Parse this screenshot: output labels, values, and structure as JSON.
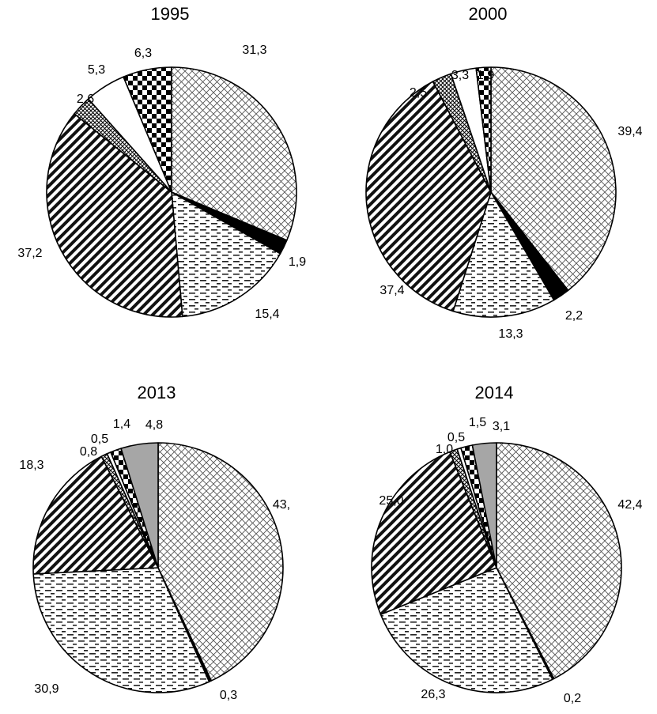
{
  "chart_data": [
    {
      "type": "pie",
      "title": "1995",
      "slices": [
        {
          "value": 31.3,
          "label": "31,3",
          "pattern": "crosshatch"
        },
        {
          "value": 1.9,
          "label": "1,9",
          "pattern": "solid-black"
        },
        {
          "value": 15.4,
          "label": "15,4",
          "pattern": "dashes"
        },
        {
          "value": 37.2,
          "label": "37,2",
          "pattern": "diagonal-stripes"
        },
        {
          "value": 2.6,
          "label": "2,6",
          "pattern": "small-grid"
        },
        {
          "value": 5.3,
          "label": "5,3",
          "pattern": "white"
        },
        {
          "value": 6.3,
          "label": "6,3",
          "pattern": "checkerboard"
        }
      ]
    },
    {
      "type": "pie",
      "title": "2000",
      "slices": [
        {
          "value": 39.4,
          "label": "39,4",
          "pattern": "crosshatch"
        },
        {
          "value": 2.2,
          "label": "2,2",
          "pattern": "solid-black"
        },
        {
          "value": 13.3,
          "label": "13,3",
          "pattern": "dashes"
        },
        {
          "value": 37.4,
          "label": "37,4",
          "pattern": "diagonal-stripes"
        },
        {
          "value": 2.5,
          "label": "2,5",
          "pattern": "small-grid"
        },
        {
          "value": 3.3,
          "label": "3,3",
          "pattern": "white"
        },
        {
          "value": 1.9,
          "label": "1,9",
          "pattern": "checkerboard"
        }
      ]
    },
    {
      "type": "pie",
      "title": "2013",
      "slices": [
        {
          "value": 43.0,
          "label": "43,",
          "pattern": "crosshatch"
        },
        {
          "value": 0.3,
          "label": "0,3",
          "pattern": "solid-black"
        },
        {
          "value": 30.9,
          "label": "30,9",
          "pattern": "dashes"
        },
        {
          "value": 18.3,
          "label": "18,3",
          "pattern": "diagonal-stripes"
        },
        {
          "value": 0.8,
          "label": "0,8",
          "pattern": "small-grid"
        },
        {
          "value": 0.5,
          "label": "0,5",
          "pattern": "white"
        },
        {
          "value": 1.4,
          "label": "1,4",
          "pattern": "checkerboard"
        },
        {
          "value": 4.8,
          "label": "4,8",
          "pattern": "gray"
        }
      ]
    },
    {
      "type": "pie",
      "title": "2014",
      "slices": [
        {
          "value": 42.4,
          "label": "42,4",
          "pattern": "crosshatch"
        },
        {
          "value": 0.2,
          "label": "0,2",
          "pattern": "solid-black"
        },
        {
          "value": 26.3,
          "label": "26,3",
          "pattern": "dashes"
        },
        {
          "value": 25.0,
          "label": "25,0",
          "pattern": "diagonal-stripes"
        },
        {
          "value": 1.0,
          "label": "1,0",
          "pattern": "small-grid"
        },
        {
          "value": 0.5,
          "label": "0,5",
          "pattern": "white"
        },
        {
          "value": 1.5,
          "label": "1,5",
          "pattern": "checkerboard"
        },
        {
          "value": 3.1,
          "label": "3,1",
          "pattern": "gray"
        }
      ]
    }
  ]
}
